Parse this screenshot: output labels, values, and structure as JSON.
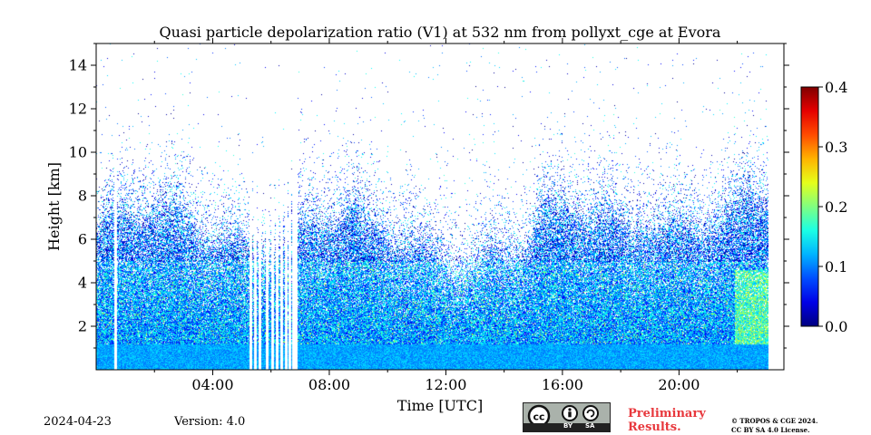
{
  "chart_data": {
    "type": "heatmap",
    "title": "Quasi particle depolarization ratio (V1) at 532 nm from pollyxt_cge at Evora",
    "xlabel": "Time [UTC]",
    "ylabel": "Height [km]",
    "xlim_hours": [
      -4,
      19.6
    ],
    "ylim_km": [
      0,
      15
    ],
    "x_ticks": [
      {
        "hour": 0,
        "label": "04:00"
      },
      {
        "hour": 4,
        "label": "08:00"
      },
      {
        "hour": 8,
        "label": "12:00"
      },
      {
        "hour": 12,
        "label": "16:00"
      },
      {
        "hour": 16,
        "label": "20:00"
      }
    ],
    "x_minor_ticks": [
      -2,
      2,
      6,
      10,
      14,
      18
    ],
    "y_ticks": [
      2,
      4,
      6,
      8,
      10,
      12,
      14
    ],
    "colorbar": {
      "min": 0.0,
      "max": 0.4,
      "ticks": [
        "0.0",
        "0.1",
        "0.2",
        "0.3",
        "0.4"
      ],
      "colormap": "jet"
    },
    "signal_gaps_hours": [
      -3.35,
      1.3,
      1.45,
      1.6,
      1.85,
      2.05,
      2.2,
      2.35,
      2.5,
      2.62,
      2.75,
      2.85
    ],
    "notes": "Dense returns below ~6 km, values mostly 0.05-0.15; sparse noise up to ~15 km; elevated values (~0.15-0.25) near 2-4 km after 18:00"
  },
  "footer": {
    "date": "2024-04-23",
    "version": "Version: 4.0",
    "preliminary_line1": "Preliminary",
    "preliminary_line2": "Results.",
    "copyright_line1": "© TROPOS & CGE 2024.",
    "copyright_line2": "CC BY SA 4.0 License.",
    "cc_by": "BY",
    "cc_sa": "SA"
  }
}
